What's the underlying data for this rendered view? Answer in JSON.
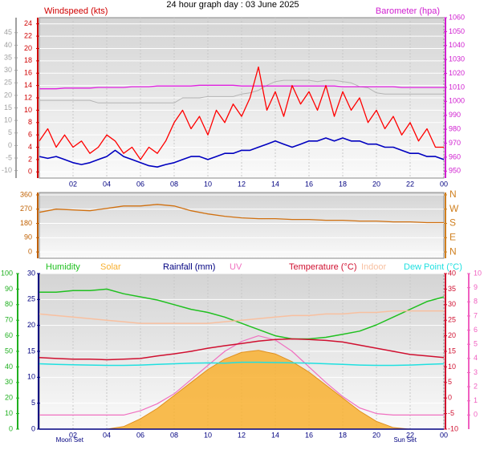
{
  "chart_data": [
    {
      "type": "line",
      "title": "24 hour graph day : 03 June 2025",
      "y_label": "Windspeed (kts)",
      "y2_label": "Barometer (hpa)",
      "xlim": [
        0,
        24
      ],
      "xticks": [
        {
          "value": 2,
          "label": "02"
        },
        {
          "value": 4,
          "label": "04"
        },
        {
          "value": 6,
          "label": "06"
        },
        {
          "value": 8,
          "label": "08"
        },
        10,
        12,
        14,
        16,
        18,
        20,
        22,
        {
          "value": 24,
          "label": "00"
        }
      ],
      "ylim": [
        -1,
        25
      ],
      "yticks": [
        0,
        2,
        4,
        6,
        8,
        10,
        12,
        14,
        16,
        18,
        20,
        22,
        24
      ],
      "y2lim": [
        945,
        1060
      ],
      "y2ticks": [
        950,
        960,
        970,
        980,
        990,
        1000,
        1010,
        1020,
        1030,
        1040,
        1050,
        1060
      ],
      "y3lim": [
        -13,
        51
      ],
      "y3ticks": [
        -10,
        -5,
        0,
        5,
        10,
        15,
        20,
        25,
        30,
        35,
        40,
        45
      ],
      "grid": true,
      "x": [
        0,
        0.5,
        1,
        1.5,
        2,
        2.5,
        3,
        3.5,
        4,
        4.5,
        5,
        5.5,
        6,
        6.5,
        7,
        7.5,
        8,
        8.5,
        9,
        9.5,
        10,
        10.5,
        11,
        11.5,
        12,
        12.5,
        13,
        13.5,
        14,
        14.5,
        15,
        15.5,
        16,
        16.5,
        17,
        17.5,
        18,
        18.5,
        19,
        19.5,
        20,
        20.5,
        21,
        21.5,
        22,
        22.5,
        23,
        23.5,
        24
      ],
      "series": [
        {
          "color": "#b4b4b4",
          "axis": "y3",
          "values": [
            18,
            18,
            18,
            18,
            18,
            18,
            18,
            17,
            17,
            17,
            17,
            17,
            17,
            17,
            17,
            17,
            17,
            19,
            19,
            19,
            19.5,
            19.5,
            19.5,
            19.5,
            20.5,
            21,
            22,
            24,
            25.5,
            26,
            26,
            26,
            26,
            25.5,
            26,
            26,
            25.5,
            25,
            23.5,
            23,
            21,
            20.5,
            20.5,
            20.5,
            20.5,
            20.5,
            20.5,
            20.5,
            20.5
          ]
        },
        {
          "color": "#e020e0",
          "axis": "y2",
          "values": [
            1009,
            1009,
            1009,
            1009.5,
            1009.5,
            1009.5,
            1009.5,
            1010,
            1010,
            1010,
            1010,
            1010.5,
            1010.5,
            1010.5,
            1011,
            1011,
            1011,
            1011,
            1011,
            1011.5,
            1011.5,
            1011.5,
            1011.5,
            1011.5,
            1011,
            1011,
            1011,
            1011,
            1011,
            1011,
            1011,
            1011,
            1011,
            1011,
            1011,
            1011,
            1010.5,
            1010.5,
            1010.5,
            1010.5,
            1010.5,
            1010.5,
            1010.5,
            1010,
            1010,
            1010,
            1010,
            1010,
            1010
          ]
        },
        {
          "color": "#ff0000",
          "values": [
            5,
            7,
            4,
            6,
            4,
            5,
            3,
            4,
            6,
            5,
            3,
            4,
            2,
            4,
            3,
            5,
            8,
            10,
            7,
            9,
            6,
            10,
            8,
            11,
            9,
            12,
            17,
            10,
            13,
            9,
            14,
            11,
            13,
            10,
            14,
            9,
            13,
            10,
            12,
            8,
            10,
            7,
            9,
            6,
            8,
            5,
            7,
            4,
            4
          ]
        },
        {
          "color": "#0000c0",
          "values": [
            2.5,
            2.2,
            2.5,
            2,
            1.5,
            1.2,
            1.5,
            2,
            2.5,
            3.5,
            2.5,
            2,
            1.5,
            1,
            0.8,
            1.2,
            1.5,
            2,
            2.5,
            2.5,
            2,
            2.5,
            3,
            3,
            3.5,
            3.5,
            4,
            4.5,
            5,
            4.5,
            4,
            4.5,
            5,
            5,
            5.5,
            5,
            5.5,
            5,
            5,
            4.5,
            4.5,
            4,
            4,
            3.5,
            3,
            3,
            2.5,
            2.5,
            2
          ]
        }
      ]
    },
    {
      "type": "line",
      "xlim": [
        0,
        24
      ],
      "ylim": [
        -40,
        375
      ],
      "yticks": [
        0,
        90,
        180,
        270,
        360
      ],
      "y2lim": [
        -40,
        375
      ],
      "y2ticks": [
        {
          "value": 0,
          "label": "N"
        },
        {
          "value": 90,
          "label": "E"
        },
        {
          "value": 180,
          "label": "S"
        },
        {
          "value": 270,
          "label": "W"
        },
        {
          "value": 360,
          "label": "N"
        }
      ],
      "grid": true,
      "x": [
        0,
        1,
        2,
        3,
        4,
        5,
        6,
        7,
        8,
        9,
        10,
        11,
        12,
        13,
        14,
        15,
        16,
        17,
        18,
        19,
        20,
        21,
        22,
        23,
        24
      ],
      "series": [
        {
          "color": "#d07010",
          "values": [
            250,
            270,
            265,
            260,
            275,
            290,
            290,
            300,
            290,
            260,
            240,
            225,
            215,
            210,
            210,
            205,
            205,
            200,
            200,
            195,
            195,
            190,
            190,
            185,
            185
          ]
        }
      ]
    },
    {
      "type": "line",
      "xlim": [
        0,
        24
      ],
      "xticks": [
        {
          "value": 2,
          "label": "02"
        },
        {
          "value": 4,
          "label": "04"
        },
        {
          "value": 6,
          "label": "06"
        },
        {
          "value": 8,
          "label": "08"
        },
        10,
        12,
        14,
        16,
        18,
        20,
        22,
        {
          "value": 24,
          "label": "00"
        }
      ],
      "ylim": [
        0,
        100
      ],
      "yticks": [
        0,
        10,
        20,
        30,
        40,
        50,
        60,
        70,
        80,
        90,
        100
      ],
      "y2lim": [
        -10,
        40
      ],
      "y2ticks": [
        -10,
        -5,
        0,
        5,
        10,
        15,
        20,
        25,
        30,
        35,
        40
      ],
      "y3lim": [
        0,
        30
      ],
      "y3ticks": [
        0,
        5,
        10,
        15,
        20,
        25,
        30
      ],
      "y4lim": [
        -1,
        10
      ],
      "y4ticks": [
        0,
        1,
        2,
        3,
        4,
        5,
        6,
        7,
        8,
        9,
        10
      ],
      "grid": true,
      "annotations": [
        {
          "text": "Moon Set",
          "x": 1.8
        },
        {
          "text": "Sun Set",
          "x": 21.7
        }
      ],
      "x": [
        0,
        1,
        2,
        3,
        4,
        5,
        6,
        7,
        8,
        9,
        10,
        11,
        12,
        13,
        14,
        15,
        16,
        17,
        18,
        19,
        20,
        21,
        22,
        23,
        24
      ],
      "series": [
        {
          "name": "Humidity",
          "color": "#20c020",
          "values": [
            88,
            88,
            89,
            89,
            90,
            87,
            85,
            83,
            80,
            77,
            75,
            72,
            68,
            64,
            60,
            58,
            58,
            59,
            61,
            63,
            67,
            72,
            77,
            82,
            85
          ]
        },
        {
          "name": "Solar",
          "color": "#f8b030",
          "axis": "y3",
          "fill": true,
          "values": [
            0,
            0,
            0,
            0,
            0,
            0.5,
            2,
            4,
            6.5,
            9,
            11.5,
            13.5,
            14.8,
            15.2,
            14.5,
            13,
            11,
            8.5,
            6,
            3.5,
            1.5,
            0.3,
            0,
            0,
            0
          ]
        },
        {
          "name": "Rainfall (mm)",
          "color": "#000080",
          "axis": "y3",
          "values": [
            0,
            0,
            0,
            0,
            0,
            0,
            0,
            0,
            0,
            0,
            0,
            0,
            0,
            0,
            0,
            0,
            0,
            0,
            0,
            0,
            0,
            0,
            0,
            0,
            0
          ]
        },
        {
          "name": "UV",
          "color": "#f070c0",
          "axis": "y4",
          "values": [
            0,
            0,
            0,
            0,
            0,
            0,
            0.3,
            0.8,
            1.5,
            2.5,
            3.5,
            4.5,
            5.2,
            5.6,
            5.3,
            4.5,
            3.4,
            2.3,
            1.3,
            0.5,
            0.1,
            0,
            0,
            0,
            0
          ]
        },
        {
          "name": "Temperature (°C)",
          "color": "#d01030",
          "axis": "y2",
          "values": [
            13,
            12.7,
            12.5,
            12.5,
            12.3,
            12.5,
            12.7,
            13.5,
            14.2,
            15,
            16,
            16.8,
            17.5,
            18.3,
            18.8,
            19,
            18.8,
            18.5,
            18,
            17,
            16,
            15,
            14,
            13.5,
            13
          ]
        },
        {
          "name": "Indoor",
          "color": "#f8c0a0",
          "axis": "y2",
          "values": [
            27,
            26.5,
            26,
            25.5,
            25,
            24.5,
            24,
            24,
            24,
            24,
            24,
            24.5,
            25,
            25.5,
            26,
            26.5,
            26.5,
            27,
            27,
            27.5,
            27.5,
            28,
            28,
            28,
            28
          ]
        },
        {
          "name": "Dew Point (°C)",
          "color": "#20e0e0",
          "axis": "y2",
          "values": [
            11,
            10.8,
            10.7,
            10.6,
            10.5,
            10.5,
            10.6,
            10.8,
            11,
            11.2,
            11.3,
            11.2,
            11.5,
            11.5,
            11.4,
            11.3,
            11.2,
            11,
            10.8,
            10.6,
            10.5,
            10.5,
            10.6,
            10.8,
            11
          ]
        }
      ]
    }
  ]
}
